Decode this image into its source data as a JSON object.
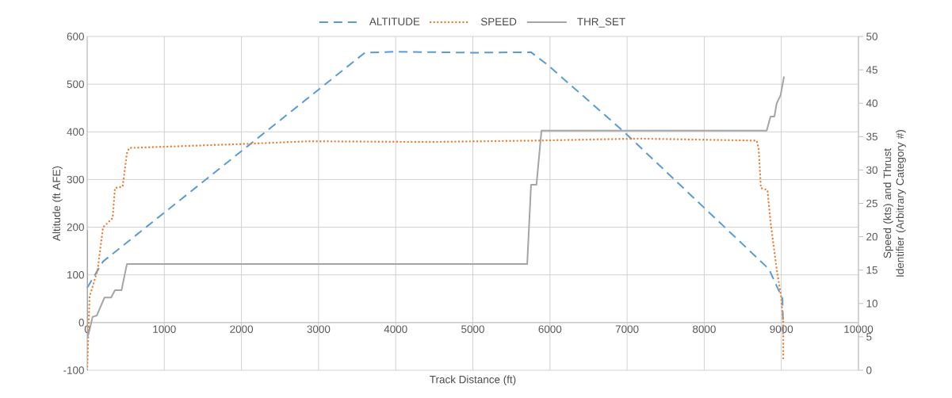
{
  "chart_data": {
    "type": "line",
    "xlabel": "Track Distance (ft)",
    "ylabel": "Altitude (ft AFE)",
    "y2label": "Speed (kts) and Thrust Identifier (Arbitrary Category #)",
    "xlim": [
      0,
      10000
    ],
    "xticks": [
      0,
      1000,
      2000,
      3000,
      4000,
      5000,
      6000,
      7000,
      8000,
      9000,
      10000
    ],
    "ylim": [
      -100,
      600
    ],
    "yticks": [
      -100,
      0,
      100,
      200,
      300,
      400,
      500,
      600
    ],
    "y2lim": [
      0,
      50
    ],
    "y2ticks": [
      0,
      5,
      10,
      15,
      20,
      25,
      30,
      35,
      40,
      45,
      50
    ],
    "grid": true,
    "legend": "top",
    "series": [
      {
        "name": "ALTITUDE",
        "color": "#5b9bd5",
        "line_style": "dashed",
        "x": [
          0,
          205,
          3600,
          4000,
          5000,
          5755,
          5980,
          6960,
          8840,
          9015,
          9025
        ],
        "values": [
          73,
          128,
          566,
          568,
          566,
          567,
          539,
          400,
          112,
          50,
          -30
        ]
      },
      {
        "name": "SPEED",
        "color": "#ed7d31",
        "line_style": "dotted",
        "axis": "y2",
        "x": [
          0,
          30,
          135,
          205,
          330,
          360,
          460,
          515,
          545,
          2025,
          2880,
          4420,
          5790,
          7160,
          8680,
          8705,
          8735,
          8820,
          8860,
          8940,
          8995,
          9025,
          9025
        ],
        "values": [
          0,
          11,
          15,
          21.4,
          22.8,
          27.3,
          27.5,
          32.5,
          33.3,
          33.9,
          34.3,
          34.2,
          34.4,
          34.7,
          34.4,
          33.3,
          27.3,
          27,
          22.2,
          15.1,
          11.2,
          7.1,
          1.4
        ]
      },
      {
        "name": "THR_SET",
        "color": "#a5a5a5",
        "line_style": "solid",
        "axis": "y2",
        "x": [
          0,
          0,
          30,
          70,
          125,
          225,
          310,
          360,
          445,
          515,
          5705,
          5755,
          5825,
          5890,
          8810,
          8860,
          8910,
          8940,
          8990,
          9035
        ],
        "values": [
          21,
          4.8,
          6,
          8,
          8.2,
          10.9,
          10.9,
          12,
          12,
          15.9,
          15.9,
          27.8,
          27.8,
          35.9,
          35.9,
          38,
          38,
          40,
          41.2,
          44
        ]
      }
    ]
  }
}
